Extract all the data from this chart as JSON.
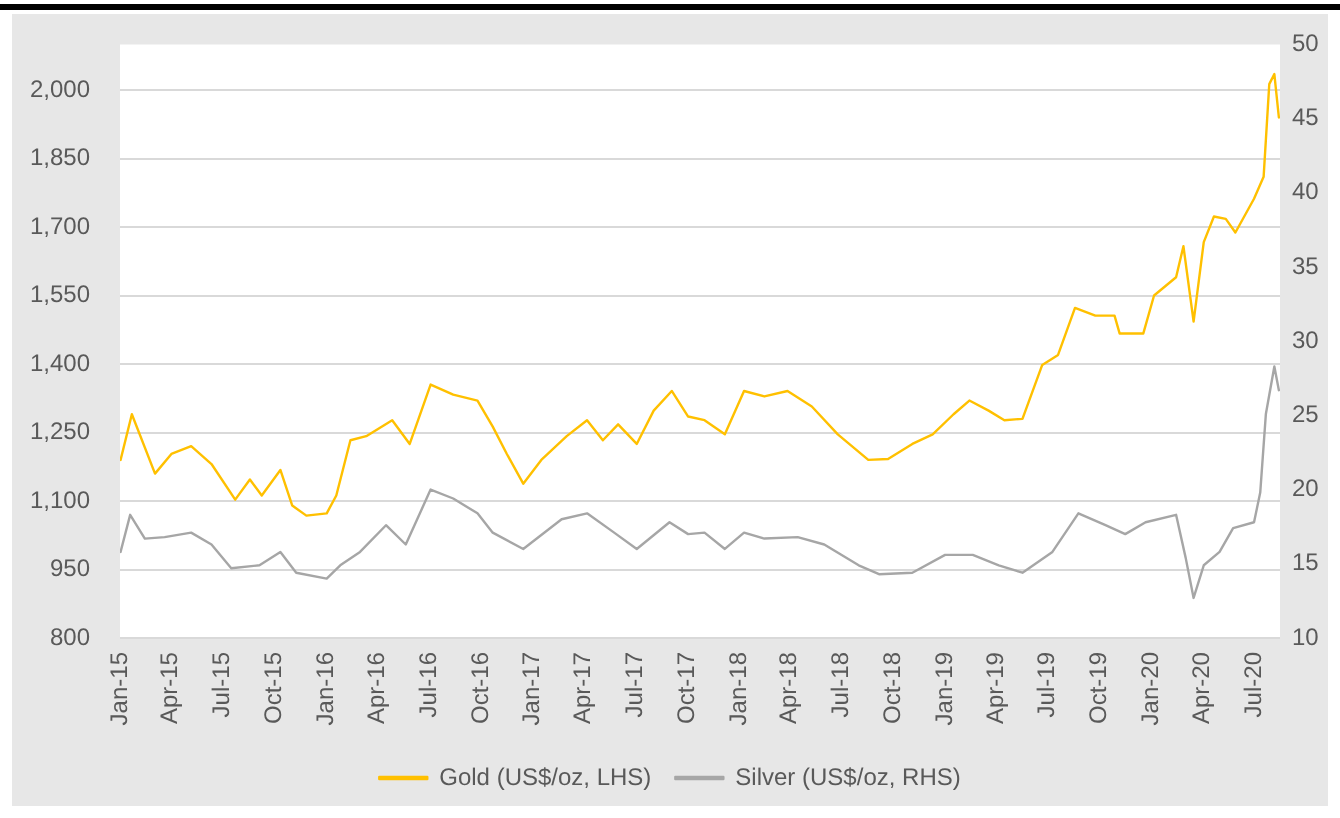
{
  "chart_data": {
    "type": "line",
    "series": [
      {
        "name": "Gold (US$/oz, LHS)",
        "color": "#ffc000",
        "x": [
          "2015-01-02",
          "2015-01-22",
          "2015-03-04",
          "2015-04-02",
          "2015-05-07",
          "2015-06-12",
          "2015-07-24",
          "2015-08-19",
          "2015-09-09",
          "2015-10-12",
          "2015-11-02",
          "2015-11-27",
          "2016-01-02",
          "2016-01-19",
          "2016-02-13",
          "2016-03-12",
          "2016-04-27",
          "2016-05-28",
          "2016-07-04",
          "2016-08-13",
          "2016-09-25",
          "2016-10-22",
          "2016-11-16",
          "2016-12-15",
          "2017-01-16",
          "2017-03-02",
          "2017-04-07",
          "2017-05-05",
          "2017-06-01",
          "2017-07-04",
          "2017-08-03",
          "2017-09-04",
          "2017-10-03",
          "2017-11-01",
          "2017-12-07",
          "2018-01-10",
          "2018-02-15",
          "2018-03-28",
          "2018-05-10",
          "2018-06-25",
          "2018-08-18",
          "2018-09-22",
          "2018-11-04",
          "2018-12-10",
          "2019-01-16",
          "2019-02-13",
          "2019-03-19",
          "2019-04-16",
          "2019-05-18",
          "2019-06-22",
          "2019-07-20",
          "2019-08-19",
          "2019-09-24",
          "2019-10-28",
          "2019-11-06",
          "2019-12-18",
          "2020-01-06",
          "2020-02-14",
          "2020-02-27",
          "2020-03-16",
          "2020-04-03",
          "2020-04-21",
          "2020-05-12",
          "2020-05-29",
          "2020-07-01",
          "2020-07-18",
          "2020-07-28",
          "2020-08-06",
          "2020-08-14"
        ],
        "values": [
          1190,
          1290,
          1160,
          1203,
          1220,
          1181,
          1103,
          1147,
          1112,
          1168,
          1090,
          1068,
          1073,
          1112,
          1233,
          1242,
          1277,
          1225,
          1355,
          1333,
          1320,
          1263,
          1203,
          1138,
          1190,
          1242,
          1277,
          1233,
          1268,
          1225,
          1298,
          1341,
          1285,
          1277,
          1246,
          1341,
          1329,
          1341,
          1307,
          1246,
          1190,
          1192,
          1225,
          1246,
          1290,
          1320,
          1298,
          1277,
          1280,
          1398,
          1420,
          1523,
          1506,
          1506,
          1467,
          1467,
          1550,
          1590,
          1658,
          1493,
          1667,
          1723,
          1718,
          1688,
          1762,
          1810,
          2013,
          2035,
          1940
        ]
      },
      {
        "name": "Silver (US$/oz, RHS)",
        "color": "#a6a6a6",
        "axis": "y2",
        "x": [
          "2015-01-02",
          "2015-01-19",
          "2015-02-14",
          "2015-03-21",
          "2015-05-07",
          "2015-06-12",
          "2015-07-17",
          "2015-09-05",
          "2015-10-12",
          "2015-11-09",
          "2016-01-02",
          "2016-01-26",
          "2016-03-01",
          "2016-04-16",
          "2016-05-21",
          "2016-07-04",
          "2016-08-13",
          "2016-09-25",
          "2016-10-22",
          "2016-12-15",
          "2017-02-21",
          "2017-04-07",
          "2017-05-25",
          "2017-07-04",
          "2017-08-31",
          "2017-10-03",
          "2017-11-01",
          "2017-12-07",
          "2018-01-10",
          "2018-02-15",
          "2018-04-15",
          "2018-06-01",
          "2018-08-01",
          "2018-09-06",
          "2018-11-04",
          "2019-01-01",
          "2019-02-19",
          "2019-04-06",
          "2019-05-18",
          "2019-07-10",
          "2019-08-25",
          "2019-10-12",
          "2019-11-16",
          "2019-12-22",
          "2020-02-14",
          "2020-03-02",
          "2020-03-16",
          "2020-04-03",
          "2020-05-01",
          "2020-05-25",
          "2020-07-01",
          "2020-07-12",
          "2020-07-22",
          "2020-08-06",
          "2020-08-14"
        ],
        "values": [
          15.8,
          18.3,
          16.7,
          16.8,
          17.1,
          16.3,
          14.7,
          14.9,
          15.8,
          14.4,
          14.0,
          14.9,
          15.8,
          17.6,
          16.3,
          20.0,
          19.4,
          18.4,
          17.1,
          16.0,
          18.0,
          18.4,
          17.1,
          16.0,
          17.8,
          17.0,
          17.1,
          16.0,
          17.1,
          16.7,
          16.8,
          16.3,
          14.9,
          14.3,
          14.4,
          15.6,
          15.6,
          14.9,
          14.4,
          15.8,
          18.4,
          17.6,
          17.0,
          17.8,
          18.3,
          15.4,
          12.7,
          14.9,
          15.8,
          17.4,
          17.8,
          19.8,
          25.1,
          28.3,
          26.7
        ]
      }
    ],
    "xlim": [
      "2015-01-01",
      "2020-08-16"
    ],
    "xticks": [
      {
        "value": "2015-01",
        "label": "Jan-15"
      },
      {
        "value": "2015-04",
        "label": "Apr-15"
      },
      {
        "value": "2015-07",
        "label": "Jul-15"
      },
      {
        "value": "2015-10",
        "label": "Oct-15"
      },
      {
        "value": "2016-01",
        "label": "Jan-16"
      },
      {
        "value": "2016-04",
        "label": "Apr-16"
      },
      {
        "value": "2016-07",
        "label": "Jul-16"
      },
      {
        "value": "2016-10",
        "label": "Oct-16"
      },
      {
        "value": "2017-01",
        "label": "Jan-17"
      },
      {
        "value": "2017-04",
        "label": "Apr-17"
      },
      {
        "value": "2017-07",
        "label": "Jul-17"
      },
      {
        "value": "2017-10",
        "label": "Oct-17"
      },
      {
        "value": "2018-01",
        "label": "Jan-18"
      },
      {
        "value": "2018-04",
        "label": "Apr-18"
      },
      {
        "value": "2018-07",
        "label": "Jul-18"
      },
      {
        "value": "2018-10",
        "label": "Oct-18"
      },
      {
        "value": "2019-01",
        "label": "Jan-19"
      },
      {
        "value": "2019-04",
        "label": "Apr-19"
      },
      {
        "value": "2019-07",
        "label": "Jul-19"
      },
      {
        "value": "2019-10",
        "label": "Oct-19"
      },
      {
        "value": "2020-01",
        "label": "Jan-20"
      },
      {
        "value": "2020-04",
        "label": "Apr-20"
      },
      {
        "value": "2020-07",
        "label": "Jul-20"
      }
    ],
    "ylim": [
      800,
      2100
    ],
    "yticks": [
      800,
      950,
      {
        "value": 1100,
        "label": "1,100"
      },
      {
        "value": 1250,
        "label": "1,250"
      },
      {
        "value": 1400,
        "label": "1,400"
      },
      {
        "value": 1550,
        "label": "1,550"
      },
      {
        "value": 1700,
        "label": "1,700"
      },
      {
        "value": 1850,
        "label": "1,850"
      },
      {
        "value": 2000,
        "label": "2,000"
      }
    ],
    "y2lim": [
      10,
      50
    ],
    "y2ticks": [
      10,
      15,
      20,
      25,
      30,
      35,
      40,
      45,
      50
    ],
    "grid": "y",
    "legend": "bottom",
    "marker": "none",
    "line_style": "solid"
  }
}
